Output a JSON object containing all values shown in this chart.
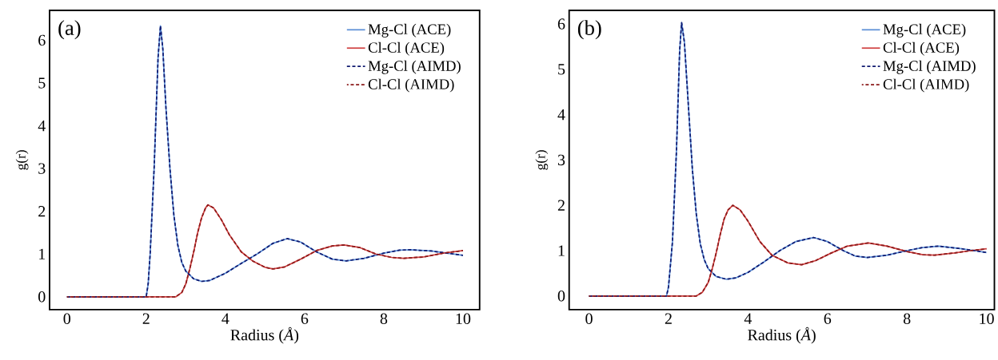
{
  "chart_data": [
    {
      "type": "line",
      "xlabel": "Radius (*Å*)",
      "ylabel": "g(r)",
      "annotations": [
        "(a)"
      ],
      "xlim": [
        -0.44,
        10.42
      ],
      "ylim": [
        -0.3,
        6.7
      ],
      "xticks": [
        0,
        2,
        4,
        6,
        8,
        10
      ],
      "yticks": [
        0,
        1,
        2,
        3,
        4,
        5,
        6
      ],
      "grid": false,
      "legend": "top right",
      "series": [
        {
          "name": "Mg-Cl (ACE)",
          "color": "#5b8ed6",
          "line_style": "solid",
          "x": [
            0,
            2.0,
            2.05,
            2.1,
            2.2,
            2.3,
            2.36,
            2.42,
            2.5,
            2.6,
            2.7,
            2.8,
            2.9,
            3.0,
            3.2,
            3.4,
            3.6,
            4.0,
            4.4,
            4.8,
            5.2,
            5.56,
            5.9,
            6.3,
            6.7,
            7.05,
            7.5,
            8.0,
            8.4,
            8.67,
            9.2,
            9.6,
            10
          ],
          "values": [
            0,
            0,
            0.3,
            1.0,
            3.0,
            5.6,
            6.34,
            5.8,
            4.4,
            3.0,
            1.9,
            1.2,
            0.8,
            0.6,
            0.42,
            0.36,
            0.38,
            0.55,
            0.78,
            1.0,
            1.25,
            1.36,
            1.28,
            1.05,
            0.88,
            0.84,
            0.9,
            1.02,
            1.09,
            1.1,
            1.07,
            1.02,
            0.97
          ]
        },
        {
          "name": "Cl-Cl (ACE)",
          "color": "#d04040",
          "line_style": "solid",
          "x": [
            0,
            2.75,
            2.9,
            3.0,
            3.1,
            3.2,
            3.3,
            3.4,
            3.5,
            3.56,
            3.7,
            3.9,
            4.1,
            4.4,
            4.7,
            5.0,
            5.2,
            5.5,
            5.9,
            6.3,
            6.7,
            7.0,
            7.4,
            7.8,
            8.2,
            8.5,
            9.0,
            9.5,
            10
          ],
          "values": [
            0,
            0,
            0.1,
            0.3,
            0.65,
            1.05,
            1.5,
            1.85,
            2.08,
            2.15,
            2.08,
            1.8,
            1.45,
            1.05,
            0.83,
            0.69,
            0.65,
            0.7,
            0.88,
            1.08,
            1.19,
            1.21,
            1.15,
            1.0,
            0.92,
            0.9,
            0.93,
            1.02,
            1.08
          ]
        },
        {
          "name": "Mg-Cl (AIMD)",
          "color": "#101a70",
          "line_style": "dashed",
          "x": [
            0,
            2.0,
            2.05,
            2.1,
            2.2,
            2.3,
            2.36,
            2.42,
            2.5,
            2.6,
            2.7,
            2.8,
            2.9,
            3.0,
            3.2,
            3.4,
            3.6,
            4.0,
            4.4,
            4.8,
            5.2,
            5.56,
            5.9,
            6.3,
            6.7,
            7.05,
            7.5,
            8.0,
            8.4,
            8.67,
            9.2,
            9.6,
            10
          ],
          "values": [
            0,
            0,
            0.3,
            1.0,
            3.0,
            5.6,
            6.34,
            5.8,
            4.4,
            3.0,
            1.9,
            1.2,
            0.8,
            0.6,
            0.42,
            0.36,
            0.38,
            0.55,
            0.78,
            1.0,
            1.25,
            1.36,
            1.28,
            1.05,
            0.88,
            0.84,
            0.9,
            1.02,
            1.09,
            1.1,
            1.07,
            1.02,
            0.97
          ]
        },
        {
          "name": "Cl-Cl (AIMD)",
          "color": "#8b1a1a",
          "line_style": "dashed",
          "x": [
            0,
            2.75,
            2.9,
            3.0,
            3.1,
            3.2,
            3.3,
            3.4,
            3.5,
            3.56,
            3.7,
            3.9,
            4.1,
            4.4,
            4.7,
            5.0,
            5.2,
            5.5,
            5.9,
            6.3,
            6.7,
            7.0,
            7.4,
            7.8,
            8.2,
            8.5,
            9.0,
            9.5,
            10
          ],
          "values": [
            0,
            0,
            0.1,
            0.3,
            0.65,
            1.05,
            1.5,
            1.85,
            2.08,
            2.15,
            2.08,
            1.8,
            1.45,
            1.05,
            0.83,
            0.69,
            0.65,
            0.7,
            0.88,
            1.08,
            1.19,
            1.21,
            1.15,
            1.0,
            0.92,
            0.9,
            0.93,
            1.02,
            1.08
          ]
        }
      ]
    },
    {
      "type": "line",
      "xlabel": "Radius (*Å*)",
      "ylabel": "g(r)",
      "annotations": [
        "(b)"
      ],
      "xlim": [
        -0.5,
        10.2
      ],
      "ylim": [
        -0.3,
        6.3
      ],
      "xticks": [
        0,
        2,
        4,
        6,
        8,
        10
      ],
      "yticks": [
        0,
        1,
        2,
        3,
        4,
        5,
        6
      ],
      "grid": false,
      "legend": "top right",
      "series": [
        {
          "name": "Mg-Cl (ACE)",
          "color": "#5b8ed6",
          "line_style": "solid",
          "x": [
            0,
            1.95,
            2.0,
            2.1,
            2.2,
            2.28,
            2.33,
            2.4,
            2.5,
            2.6,
            2.7,
            2.8,
            2.9,
            3.0,
            3.2,
            3.45,
            3.7,
            4.0,
            4.4,
            4.8,
            5.2,
            5.65,
            6.0,
            6.4,
            6.7,
            7.0,
            7.5,
            8.0,
            8.4,
            8.8,
            9.3,
            9.7,
            10
          ],
          "values": [
            0,
            0,
            0.2,
            1.2,
            3.2,
            5.4,
            6.03,
            5.6,
            4.2,
            2.8,
            1.8,
            1.15,
            0.8,
            0.6,
            0.43,
            0.37,
            0.4,
            0.52,
            0.75,
            1.0,
            1.2,
            1.29,
            1.2,
            1.0,
            0.88,
            0.85,
            0.9,
            1.0,
            1.07,
            1.1,
            1.05,
            1.0,
            0.96
          ]
        },
        {
          "name": "Cl-Cl (ACE)",
          "color": "#d04040",
          "line_style": "solid",
          "x": [
            0,
            2.7,
            2.85,
            3.0,
            3.1,
            3.2,
            3.3,
            3.4,
            3.5,
            3.62,
            3.8,
            4.0,
            4.3,
            4.6,
            5.0,
            5.35,
            5.7,
            6.1,
            6.5,
            7.03,
            7.5,
            8.0,
            8.4,
            8.7,
            9.2,
            9.6,
            10
          ],
          "values": [
            0,
            0,
            0.08,
            0.3,
            0.6,
            0.95,
            1.35,
            1.7,
            1.9,
            2.0,
            1.9,
            1.65,
            1.2,
            0.9,
            0.73,
            0.69,
            0.78,
            0.95,
            1.1,
            1.17,
            1.1,
            0.98,
            0.91,
            0.9,
            0.95,
            1.0,
            1.04
          ]
        },
        {
          "name": "Mg-Cl (AIMD)",
          "color": "#101a70",
          "line_style": "dashed",
          "x": [
            0,
            1.95,
            2.0,
            2.1,
            2.2,
            2.28,
            2.33,
            2.4,
            2.5,
            2.6,
            2.7,
            2.8,
            2.9,
            3.0,
            3.2,
            3.45,
            3.7,
            4.0,
            4.4,
            4.8,
            5.2,
            5.65,
            6.0,
            6.4,
            6.7,
            7.0,
            7.5,
            8.0,
            8.4,
            8.8,
            9.3,
            9.7,
            10
          ],
          "values": [
            0,
            0,
            0.2,
            1.2,
            3.2,
            5.4,
            6.03,
            5.6,
            4.2,
            2.8,
            1.8,
            1.15,
            0.8,
            0.6,
            0.43,
            0.37,
            0.4,
            0.52,
            0.75,
            1.0,
            1.2,
            1.29,
            1.2,
            1.0,
            0.88,
            0.85,
            0.9,
            1.0,
            1.07,
            1.1,
            1.05,
            1.0,
            0.96
          ]
        },
        {
          "name": "Cl-Cl (AIMD)",
          "color": "#8b1a1a",
          "line_style": "dashed",
          "x": [
            0,
            2.7,
            2.85,
            3.0,
            3.1,
            3.2,
            3.3,
            3.4,
            3.5,
            3.62,
            3.8,
            4.0,
            4.3,
            4.6,
            5.0,
            5.35,
            5.7,
            6.1,
            6.5,
            7.03,
            7.5,
            8.0,
            8.4,
            8.7,
            9.2,
            9.6,
            10
          ],
          "values": [
            0,
            0,
            0.08,
            0.3,
            0.6,
            0.95,
            1.35,
            1.7,
            1.9,
            2.0,
            1.9,
            1.65,
            1.2,
            0.9,
            0.73,
            0.69,
            0.78,
            0.95,
            1.1,
            1.17,
            1.1,
            0.98,
            0.91,
            0.9,
            0.95,
            1.0,
            1.04
          ]
        }
      ]
    }
  ]
}
